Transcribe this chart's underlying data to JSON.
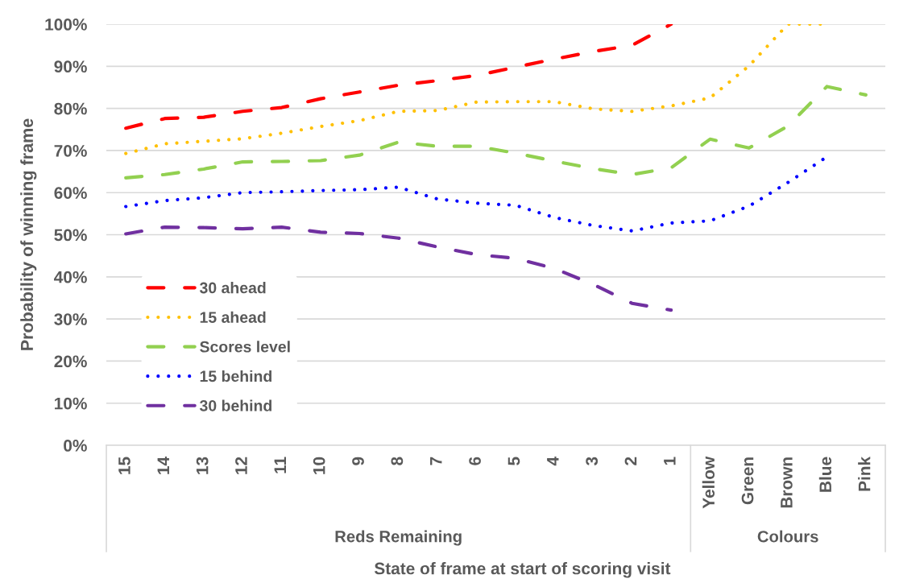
{
  "chart_data": {
    "type": "line",
    "ylabel": "Probability of winning frame",
    "xlabel": "State of frame at start of scoring visit",
    "categories": [
      "15",
      "14",
      "13",
      "12",
      "11",
      "10",
      "9",
      "8",
      "7",
      "6",
      "5",
      "4",
      "3",
      "2",
      "1",
      "Yellow",
      "Green",
      "Brown",
      "Blue",
      "Pink"
    ],
    "series": [
      {
        "name": "30 ahead",
        "color": "#ff0000",
        "line_style": "dashed",
        "values": [
          75.3,
          77.6,
          77.9,
          79.3,
          80.2,
          82.3,
          83.9,
          85.5,
          86.6,
          87.8,
          89.8,
          91.7,
          93.5,
          95.0,
          100,
          null,
          null,
          null,
          null,
          null
        ]
      },
      {
        "name": "15 ahead",
        "color": "#ffc000",
        "line_style": "dotted",
        "values": [
          69.3,
          71.6,
          72.2,
          72.8,
          74.1,
          75.7,
          77.1,
          79.3,
          79.5,
          81.5,
          81.6,
          81.6,
          79.9,
          79.3,
          80.6,
          82.5,
          90.1,
          100,
          100,
          null
        ]
      },
      {
        "name": "Scores level",
        "color": "#92d050",
        "line_style": "dashed",
        "values": [
          63.5,
          64.3,
          65.6,
          67.3,
          67.4,
          67.6,
          68.9,
          72.0,
          71.0,
          71.0,
          69.4,
          67.5,
          65.7,
          64.3,
          65.9,
          72.7,
          70.6,
          75.8,
          85.2,
          83.2
        ]
      },
      {
        "name": "15 behind",
        "color": "#0000ff",
        "line_style": "dotted",
        "values": [
          56.7,
          58.1,
          58.8,
          60.0,
          60.2,
          60.5,
          60.7,
          61.3,
          58.5,
          57.5,
          57.0,
          54.1,
          52.2,
          50.9,
          52.8,
          53.3,
          56.8,
          62.4,
          68.5,
          null
        ]
      },
      {
        "name": "30 behind",
        "color": "#7030a0",
        "line_style": "dashed",
        "values": [
          50.2,
          51.8,
          51.7,
          51.4,
          51.8,
          50.6,
          50.3,
          49.2,
          47.1,
          45.3,
          44.4,
          42.0,
          38.2,
          33.7,
          32.1,
          null,
          null,
          null,
          null,
          null
        ]
      }
    ],
    "ylim": [
      0,
      100
    ],
    "yticks": [
      {
        "value": 0,
        "label": "0%"
      },
      {
        "value": 10,
        "label": "10%"
      },
      {
        "value": 20,
        "label": "20%"
      },
      {
        "value": 30,
        "label": "30%"
      },
      {
        "value": 40,
        "label": "40%"
      },
      {
        "value": 50,
        "label": "50%"
      },
      {
        "value": 60,
        "label": "60%"
      },
      {
        "value": 70,
        "label": "70%"
      },
      {
        "value": 80,
        "label": "80%"
      },
      {
        "value": 90,
        "label": "90%"
      },
      {
        "value": 100,
        "label": "100%"
      }
    ],
    "grid": "y",
    "legend": "bottom left",
    "annotations": [
      "Reds Remaining",
      "Colours"
    ]
  }
}
